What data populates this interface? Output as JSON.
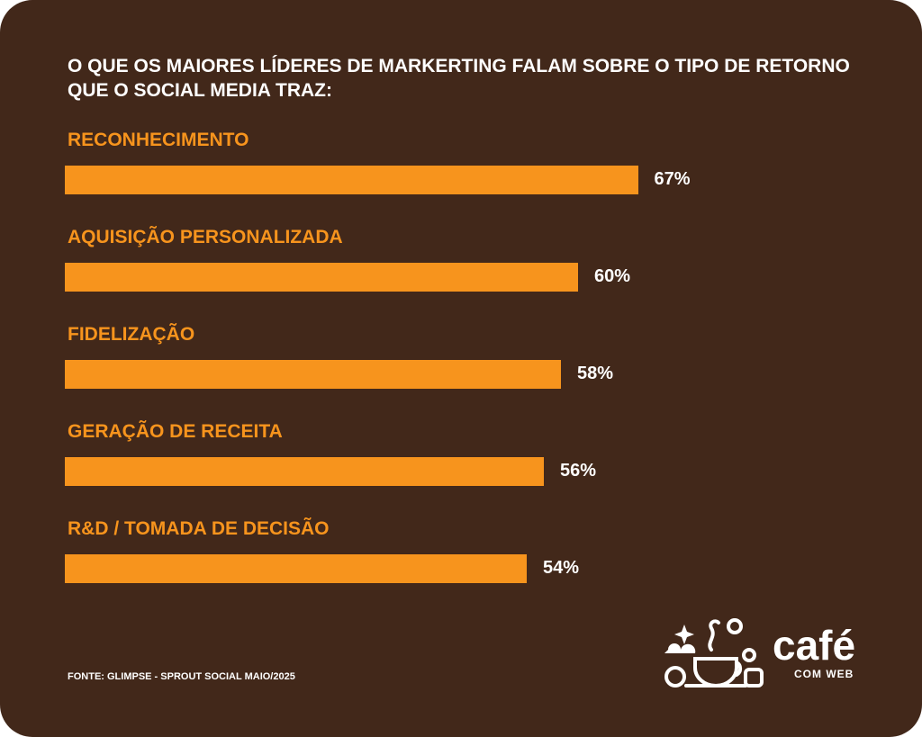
{
  "chart_data": {
    "type": "bar",
    "orientation": "horizontal",
    "title": "O QUE OS MAIORES LÍDERES DE MARKERTING FALAM SOBRE O TIPO DE RETORNO QUE O SOCIAL MEDIA TRAZ:",
    "categories": [
      "RECONHECIMENTO",
      "AQUISIÇÃO PERSONALIZADA",
      "FIDELIZAÇÃO",
      "GERAÇÃO DE RECEITA",
      "R&D / TOMADA DE DECISÃO"
    ],
    "values": [
      67,
      60,
      58,
      56,
      54
    ],
    "value_labels": [
      "67%",
      "60%",
      "58%",
      "56%",
      "54%"
    ],
    "color": "#f7941d"
  },
  "source": "FONTE: GLIMPSE - SPROUT SOCIAL MAIO/2025",
  "logo": {
    "name": "café",
    "tagline": "COM WEB"
  }
}
